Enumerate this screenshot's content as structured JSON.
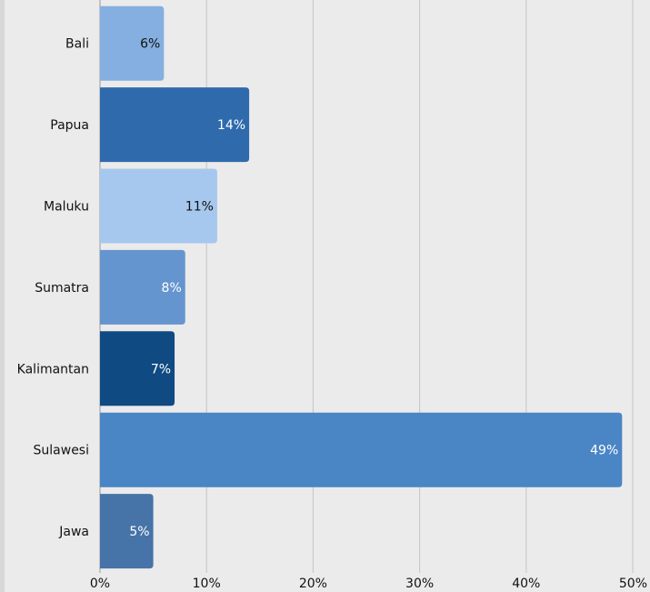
{
  "chart_data": {
    "type": "bar",
    "orientation": "horizontal",
    "categories": [
      "Bali",
      "Papua",
      "Maluku",
      "Sumatra",
      "Kalimantan",
      "Sulawesi",
      "Jawa"
    ],
    "values": [
      6,
      14,
      11,
      8,
      7,
      49,
      5
    ],
    "value_labels": [
      "6%",
      "14%",
      "11%",
      "8%",
      "7%",
      "49%",
      "5%"
    ],
    "colors": [
      "#84afe0",
      "#2f6aad",
      "#a7c8ee",
      "#6595cf",
      "#0f4a82",
      "#4a85c5",
      "#4673a8"
    ],
    "label_colors": [
      "#111111",
      "#ffffff",
      "#111111",
      "#ffffff",
      "#ffffff",
      "#ffffff",
      "#ffffff"
    ],
    "xlim": [
      0,
      50
    ],
    "x_ticks": [
      "0%",
      "10%",
      "20%",
      "30%",
      "40%",
      "50%"
    ],
    "grid": "vertical",
    "title": "",
    "xlabel": "",
    "ylabel": ""
  }
}
